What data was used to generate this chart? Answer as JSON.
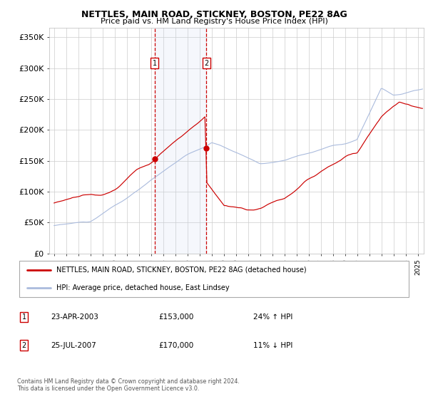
{
  "title": "NETTLES, MAIN ROAD, STICKNEY, BOSTON, PE22 8AG",
  "subtitle": "Price paid vs. HM Land Registry's House Price Index (HPI)",
  "red_label": "NETTLES, MAIN ROAD, STICKNEY, BOSTON, PE22 8AG (detached house)",
  "blue_label": "HPI: Average price, detached house, East Lindsey",
  "transaction1_date": "23-APR-2003",
  "transaction1_price": 153000,
  "transaction1_hpi": "24% ↑ HPI",
  "transaction2_date": "25-JUL-2007",
  "transaction2_price": 170000,
  "transaction2_hpi": "11% ↓ HPI",
  "footer": "Contains HM Land Registry data © Crown copyright and database right 2024.\nThis data is licensed under the Open Government Licence v3.0.",
  "yticks": [
    0,
    50000,
    100000,
    150000,
    200000,
    250000,
    300000,
    350000
  ],
  "ytick_labels": [
    "£0",
    "£50K",
    "£100K",
    "£150K",
    "£200K",
    "£250K",
    "£300K",
    "£350K"
  ],
  "bg_color": "#ffffff",
  "grid_color": "#cccccc",
  "red_color": "#cc0000",
  "blue_color": "#aabbdd",
  "shade_color": "#ddeeff",
  "transaction1_x": 2003.31,
  "transaction2_x": 2007.56,
  "box_color": "#cc0000",
  "xstart": 1995,
  "xend": 2025
}
